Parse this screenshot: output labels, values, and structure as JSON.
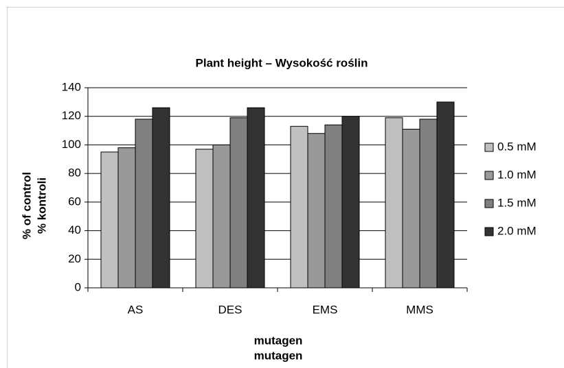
{
  "chart_data": {
    "type": "bar",
    "title": "Plant height – Wysokość roślin",
    "categories": [
      "AS",
      "DES",
      "EMS",
      "MMS"
    ],
    "series": [
      {
        "name": "0.5 mM",
        "color": "#c0c0c0",
        "values": [
          95,
          97,
          113,
          119
        ]
      },
      {
        "name": "1.0 mM",
        "color": "#999999",
        "values": [
          98,
          100,
          108,
          111
        ]
      },
      {
        "name": "1.5 mM",
        "color": "#808080",
        "values": [
          118,
          119,
          114,
          118
        ]
      },
      {
        "name": "2.0 mM",
        "color": "#333333",
        "values": [
          126,
          126,
          120,
          130
        ]
      }
    ],
    "xlabel": [
      "mutagen",
      "mutagen"
    ],
    "ylabel": [
      "% of control",
      "% kontroli"
    ],
    "ylim": [
      0,
      140
    ],
    "yticks": [
      0,
      20,
      40,
      60,
      80,
      100,
      120,
      140
    ],
    "grid": true,
    "legend": "right"
  }
}
